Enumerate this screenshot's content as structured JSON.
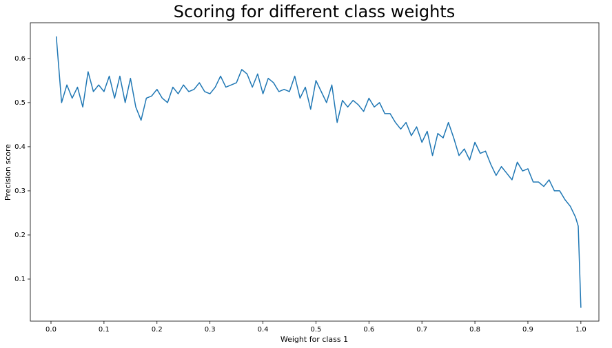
{
  "chart_data": {
    "type": "line",
    "title": "Scoring for different class weights",
    "xlabel": "Weight for class 1",
    "ylabel": "Precision score",
    "color": "#1f77b4",
    "x": [
      0.01,
      0.02,
      0.03,
      0.04,
      0.05,
      0.06,
      0.07,
      0.08,
      0.09,
      0.1,
      0.11,
      0.12,
      0.13,
      0.14,
      0.15,
      0.16,
      0.17,
      0.18,
      0.19,
      0.2,
      0.21,
      0.22,
      0.23,
      0.24,
      0.25,
      0.26,
      0.27,
      0.28,
      0.29,
      0.3,
      0.31,
      0.32,
      0.33,
      0.34,
      0.35,
      0.36,
      0.37,
      0.38,
      0.39,
      0.4,
      0.41,
      0.42,
      0.43,
      0.44,
      0.45,
      0.46,
      0.47,
      0.48,
      0.49,
      0.5,
      0.51,
      0.52,
      0.53,
      0.54,
      0.55,
      0.56,
      0.57,
      0.58,
      0.59,
      0.6,
      0.61,
      0.62,
      0.63,
      0.64,
      0.65,
      0.66,
      0.67,
      0.68,
      0.69,
      0.7,
      0.71,
      0.72,
      0.73,
      0.74,
      0.75,
      0.76,
      0.77,
      0.78,
      0.79,
      0.8,
      0.81,
      0.82,
      0.83,
      0.84,
      0.85,
      0.86,
      0.87,
      0.88,
      0.89,
      0.9,
      0.91,
      0.92,
      0.93,
      0.94,
      0.95,
      0.96,
      0.97,
      0.98,
      0.99,
      0.995,
      1.0
    ],
    "values": [
      0.65,
      0.5,
      0.54,
      0.51,
      0.535,
      0.49,
      0.57,
      0.525,
      0.54,
      0.525,
      0.56,
      0.51,
      0.56,
      0.5,
      0.555,
      0.49,
      0.46,
      0.51,
      0.515,
      0.53,
      0.51,
      0.5,
      0.535,
      0.52,
      0.54,
      0.525,
      0.53,
      0.545,
      0.525,
      0.52,
      0.535,
      0.56,
      0.535,
      0.54,
      0.545,
      0.575,
      0.565,
      0.535,
      0.565,
      0.52,
      0.555,
      0.545,
      0.525,
      0.53,
      0.525,
      0.56,
      0.51,
      0.535,
      0.485,
      0.55,
      0.525,
      0.5,
      0.54,
      0.455,
      0.505,
      0.49,
      0.505,
      0.495,
      0.48,
      0.51,
      0.49,
      0.5,
      0.475,
      0.475,
      0.455,
      0.44,
      0.455,
      0.425,
      0.445,
      0.41,
      0.435,
      0.38,
      0.43,
      0.42,
      0.455,
      0.42,
      0.38,
      0.395,
      0.37,
      0.41,
      0.385,
      0.39,
      0.36,
      0.335,
      0.355,
      0.34,
      0.325,
      0.365,
      0.345,
      0.35,
      0.32,
      0.32,
      0.31,
      0.325,
      0.3,
      0.3,
      0.28,
      0.265,
      0.24,
      0.22,
      0.035
    ],
    "xlim": [
      -0.039,
      1.034
    ],
    "ylim": [
      0.0047,
      0.681
    ],
    "xticks": [
      {
        "value": 0,
        "label": "0.0"
      },
      0.1,
      0.2,
      0.3,
      0.4,
      0.5,
      0.6,
      0.7,
      0.8,
      0.9,
      {
        "value": 1,
        "label": "1.0"
      }
    ],
    "yticks": [
      0.1,
      0.2,
      0.3,
      0.4,
      0.5,
      0.6
    ],
    "grid": false
  }
}
